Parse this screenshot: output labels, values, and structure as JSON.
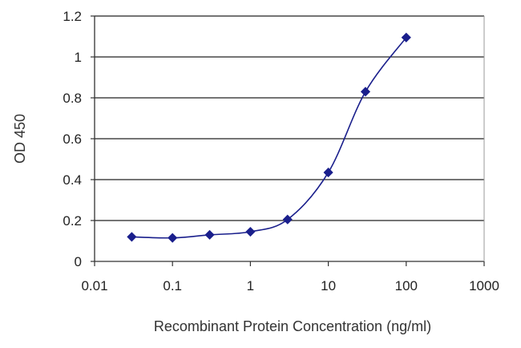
{
  "chart_data": {
    "type": "line",
    "title": "",
    "xlabel": "Recombinant Protein Concentration (ng/ml)",
    "ylabel": "OD 450",
    "x_scale": "log",
    "xlim": [
      0.01,
      1000
    ],
    "ylim": [
      0,
      1.2
    ],
    "x_ticks": [
      0.01,
      0.1,
      1,
      10,
      100,
      1000
    ],
    "x_tick_labels": [
      "0.01",
      "0.1",
      "1",
      "10",
      "100",
      "1000"
    ],
    "y_ticks": [
      0,
      0.2,
      0.4,
      0.6,
      0.8,
      1,
      1.2
    ],
    "y_tick_labels": [
      "0",
      "0.2",
      "0.4",
      "0.6",
      "0.8",
      "1",
      "1.2"
    ],
    "grid": "horizontal",
    "legend": "none",
    "series": [
      {
        "x": [
          0.03,
          0.1,
          0.3,
          1,
          3,
          10,
          30,
          100
        ],
        "y": [
          0.12,
          0.115,
          0.13,
          0.145,
          0.205,
          0.435,
          0.83,
          1.095
        ]
      }
    ],
    "colors": {
      "series": "#1a1f8c",
      "grid": "#222222",
      "axis": "#333333"
    }
  }
}
